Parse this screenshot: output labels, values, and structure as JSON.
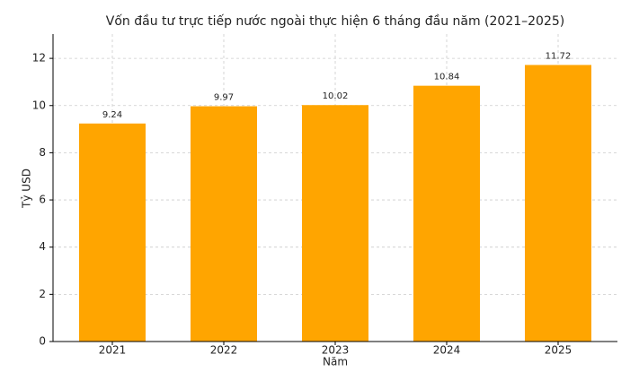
{
  "chart_data": {
    "type": "bar",
    "title": "Vốn đầu tư trực tiếp nước ngoài thực hiện 6 tháng đầu năm (2021–2025)",
    "x_label": "Năm",
    "y_label": "Tỷ USD",
    "categories": [
      "2021",
      "2022",
      "2023",
      "2024",
      "2025"
    ],
    "values": [
      9.24,
      9.97,
      10.02,
      10.84,
      11.72
    ],
    "color": "#ffa500",
    "ylim": [
      0,
      13.03
    ],
    "yticks": [
      0,
      2,
      4,
      6,
      8,
      10,
      12
    ],
    "grid": true
  }
}
